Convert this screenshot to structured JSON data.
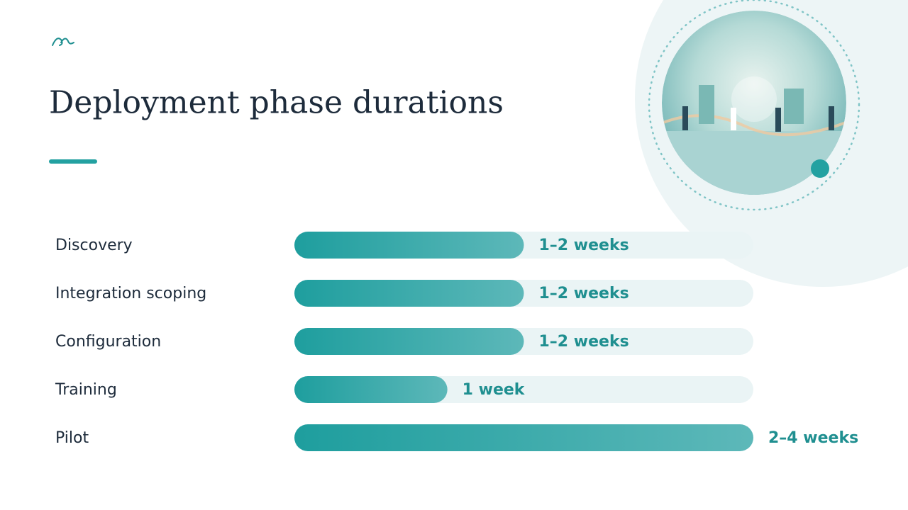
{
  "chart_data": {
    "type": "bar",
    "orientation": "horizontal",
    "title": "Deployment phase durations",
    "categories": [
      "Discovery",
      "Integration scoping",
      "Configuration",
      "Training",
      "Pilot"
    ],
    "values": [
      1.5,
      1.5,
      1.5,
      1,
      3
    ],
    "value_labels": [
      "1–2 weeks",
      "1–2 weeks",
      "1–2 weeks",
      "1 week",
      "2–4 weeks"
    ],
    "xlim": [
      0,
      3
    ],
    "color": "#23a1a1"
  }
}
